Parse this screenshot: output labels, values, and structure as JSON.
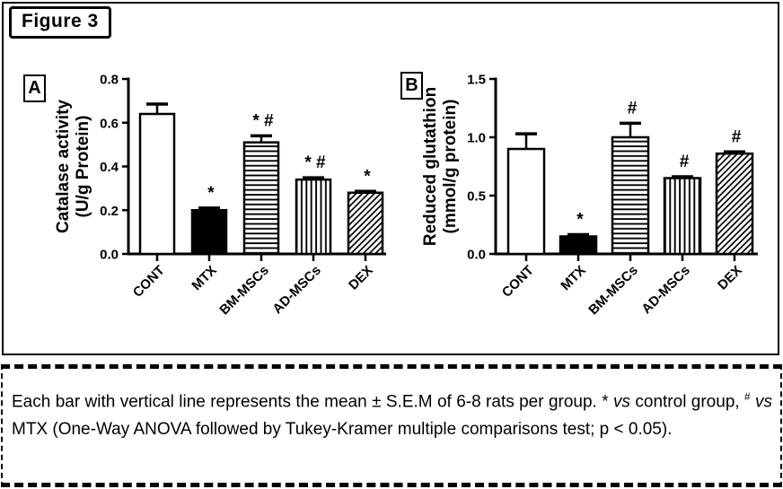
{
  "figure_label": "Figure 3",
  "panels": [
    {
      "label": "A"
    },
    {
      "label": "B"
    }
  ],
  "chart_data": [
    {
      "type": "bar",
      "panel": "A",
      "title": "",
      "categories": [
        "CONT",
        "MTX",
        "BM-MSCs",
        "AD-MSCs",
        "DEX"
      ],
      "values": [
        0.64,
        0.2,
        0.51,
        0.34,
        0.28
      ],
      "sem": [
        0.045,
        0.01,
        0.03,
        0.008,
        0.006
      ],
      "significance": [
        "",
        "*",
        "* #",
        "* #",
        "*"
      ],
      "ylabel_lines": [
        "Catalase activity",
        "(U/g Protein)"
      ],
      "xlabel": "",
      "ylim": [
        0,
        0.8
      ],
      "ytick_step": 0.2,
      "ytick_labels": [
        "0.0",
        "0.2",
        "0.4",
        "0.6",
        "0.8"
      ],
      "bar_styles": [
        "solid-white",
        "solid-black",
        "hlines",
        "vlines",
        "dlines"
      ],
      "grid": false,
      "legend": "none"
    },
    {
      "type": "bar",
      "panel": "B",
      "title": "",
      "categories": [
        "CONT",
        "MTX",
        "BM-MSCs",
        "AD-MSCs",
        "DEX"
      ],
      "values": [
        0.9,
        0.15,
        1.0,
        0.65,
        0.86
      ],
      "sem": [
        0.13,
        0.015,
        0.12,
        0.012,
        0.015
      ],
      "significance": [
        "",
        "*",
        "#",
        "#",
        "#"
      ],
      "ylabel_lines": [
        "Reduced glutathion",
        "(mmol/g protein)"
      ],
      "xlabel": "",
      "ylim": [
        0,
        1.5
      ],
      "ytick_step": 0.5,
      "ytick_labels": [
        "0.0",
        "0.5",
        "1.0",
        "1.5"
      ],
      "bar_styles": [
        "solid-white",
        "solid-black",
        "hlines",
        "vlines",
        "dlines"
      ],
      "grid": false,
      "legend": "none"
    }
  ],
  "caption": {
    "segments": [
      {
        "text": "Each bar with vertical line represents the mean ± S.E.M of 6-8 rats per group. ",
        "style": "normal"
      },
      {
        "text": "* ",
        "style": "normal"
      },
      {
        "text": "vs",
        "style": "italic"
      },
      {
        "text": " control group, ",
        "style": "normal"
      },
      {
        "text": "#",
        "style": "sup"
      },
      {
        "text": " ",
        "style": "normal"
      },
      {
        "text": "vs",
        "style": "italic"
      },
      {
        "text": " MTX (One-Way ANOVA followed by Tukey-Kramer multiple comparisons test; p < 0.05).",
        "style": "normal"
      }
    ]
  },
  "colors": {
    "ink": "#000000",
    "background": "#ffffff"
  }
}
